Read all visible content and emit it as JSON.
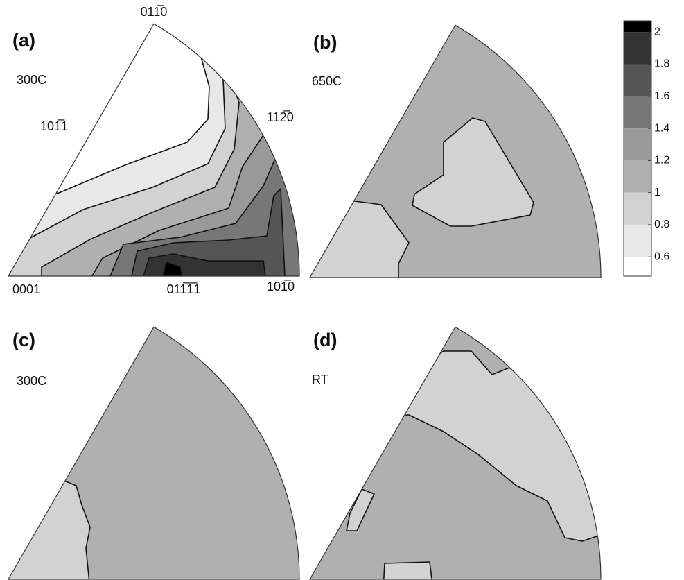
{
  "panels": [
    {
      "label": "(a)",
      "condition": "300C"
    },
    {
      "label": "(b)",
      "condition": "650C"
    },
    {
      "label": "(c)",
      "condition": "300C"
    },
    {
      "label": "(d)",
      "condition": "RT"
    }
  ],
  "poles": {
    "top": "011̅0",
    "upper_left": "101̅1",
    "upper_right": "112̅0",
    "origin": "0001",
    "bottom_middle": "011̅1̅1",
    "bottom_right": "101̅0"
  },
  "colorbar": {
    "lim": [
      0.48,
      2.07
    ],
    "ticks": [
      2,
      1.8,
      1.6,
      1.4,
      1.2,
      1,
      0.8,
      0.6
    ],
    "colors": [
      "#000000",
      "#333333",
      "#555555",
      "#777777",
      "#999999",
      "#b0b0b0",
      "#d2d2d2",
      "#e8e8e8",
      "#ffffff"
    ]
  }
}
